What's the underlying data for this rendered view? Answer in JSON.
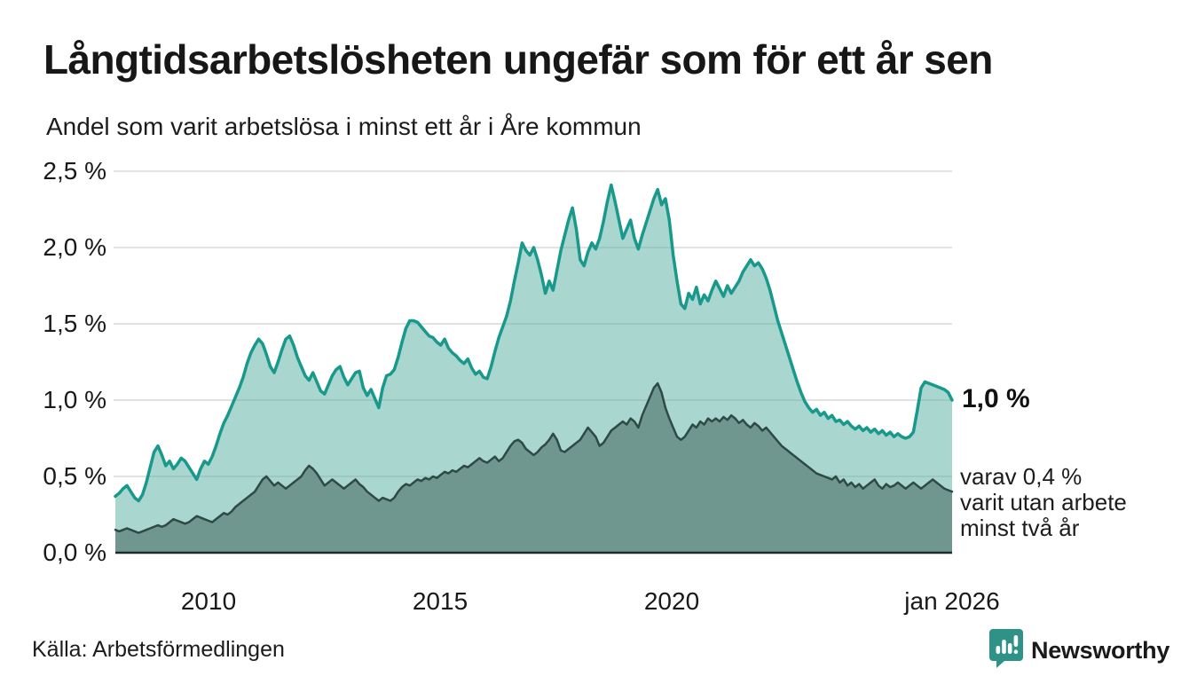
{
  "header": {
    "title": "Långtidsarbetslösheten ungefär som för ett år sen",
    "subtitle": "Andel som varit arbetslösa i minst ett år i Åre kommun"
  },
  "chart_data": {
    "type": "area",
    "title": "Långtidsarbetslösheten ungefär som för ett år sen",
    "subtitle": "Andel som varit arbetslösa i minst ett år i Åre kommun",
    "unit": "%",
    "x_start": "jan 2008",
    "x_end": "jan 2026",
    "points_per_year": 12,
    "ylim": [
      0,
      2.5
    ],
    "grid": true,
    "grid_color": "#e2e2e2",
    "axis_color": "#1d2c29",
    "y_ticks": [
      {
        "label": "2,5 %",
        "value": 2.5
      },
      {
        "label": "2,0 %",
        "value": 2.0
      },
      {
        "label": "1,5 %",
        "value": 1.5
      },
      {
        "label": "1,0 %",
        "value": 1.0
      },
      {
        "label": "0,5 %",
        "value": 0.5
      },
      {
        "label": "0,0 %",
        "value": 0.0
      }
    ],
    "x_ticks": [
      {
        "label": "2010",
        "year": 2010
      },
      {
        "label": "2015",
        "year": 2015
      },
      {
        "label": "2020",
        "year": 2020
      },
      {
        "label": "jan 2026",
        "year": 2026
      }
    ],
    "end_labels": {
      "total": "1,0 %",
      "detail": [
        "varav 0,4 %",
        "varit utan arbete",
        "minst två år"
      ]
    },
    "series": [
      {
        "name": "Andel arbetslösa minst ett år",
        "line_color": "#18998b",
        "fill_color": "#53ad9f",
        "fill_opacity": 0.5,
        "line_width": 3.5,
        "last_value": 1.0,
        "values": [
          0.37,
          0.39,
          0.42,
          0.44,
          0.4,
          0.36,
          0.34,
          0.38,
          0.46,
          0.56,
          0.66,
          0.7,
          0.64,
          0.57,
          0.6,
          0.55,
          0.58,
          0.62,
          0.6,
          0.56,
          0.52,
          0.48,
          0.55,
          0.6,
          0.58,
          0.63,
          0.7,
          0.78,
          0.85,
          0.9,
          0.96,
          1.02,
          1.08,
          1.15,
          1.24,
          1.31,
          1.36,
          1.4,
          1.37,
          1.3,
          1.22,
          1.18,
          1.25,
          1.33,
          1.4,
          1.42,
          1.36,
          1.28,
          1.22,
          1.16,
          1.13,
          1.18,
          1.12,
          1.06,
          1.04,
          1.1,
          1.16,
          1.2,
          1.22,
          1.15,
          1.1,
          1.14,
          1.18,
          1.19,
          1.08,
          1.03,
          1.07,
          1.01,
          0.95,
          1.08,
          1.16,
          1.17,
          1.2,
          1.28,
          1.38,
          1.47,
          1.52,
          1.52,
          1.51,
          1.48,
          1.45,
          1.42,
          1.41,
          1.38,
          1.36,
          1.4,
          1.34,
          1.31,
          1.29,
          1.26,
          1.24,
          1.27,
          1.21,
          1.17,
          1.19,
          1.15,
          1.14,
          1.22,
          1.32,
          1.41,
          1.48,
          1.55,
          1.65,
          1.78,
          1.9,
          2.03,
          1.98,
          1.95,
          2.0,
          1.92,
          1.82,
          1.7,
          1.78,
          1.72,
          1.85,
          1.98,
          2.08,
          2.18,
          2.26,
          2.12,
          1.92,
          1.88,
          1.97,
          2.03,
          1.99,
          2.06,
          2.17,
          2.3,
          2.41,
          2.3,
          2.18,
          2.06,
          2.12,
          2.18,
          2.06,
          1.99,
          2.08,
          2.16,
          2.24,
          2.32,
          2.38,
          2.28,
          2.32,
          2.18,
          1.95,
          1.78,
          1.63,
          1.6,
          1.7,
          1.66,
          1.74,
          1.63,
          1.69,
          1.65,
          1.72,
          1.78,
          1.73,
          1.68,
          1.75,
          1.7,
          1.74,
          1.78,
          1.84,
          1.88,
          1.92,
          1.88,
          1.9,
          1.86,
          1.8,
          1.72,
          1.62,
          1.52,
          1.44,
          1.36,
          1.28,
          1.2,
          1.12,
          1.05,
          0.99,
          0.95,
          0.92,
          0.94,
          0.9,
          0.92,
          0.88,
          0.9,
          0.86,
          0.87,
          0.84,
          0.86,
          0.83,
          0.81,
          0.83,
          0.8,
          0.82,
          0.79,
          0.81,
          0.78,
          0.8,
          0.77,
          0.79,
          0.76,
          0.78,
          0.76,
          0.75,
          0.76,
          0.79,
          0.93,
          1.08,
          1.12,
          1.11,
          1.1,
          1.09,
          1.08,
          1.07,
          1.05,
          1.0
        ]
      },
      {
        "name": "varav utan arbete minst två år",
        "line_color": "#2e4a45",
        "fill_color": "#70978f",
        "fill_opacity": 1,
        "line_width": 2.5,
        "last_value": 0.4,
        "values": [
          0.15,
          0.14,
          0.15,
          0.16,
          0.15,
          0.14,
          0.13,
          0.14,
          0.15,
          0.16,
          0.17,
          0.18,
          0.17,
          0.18,
          0.2,
          0.22,
          0.21,
          0.2,
          0.19,
          0.2,
          0.22,
          0.24,
          0.23,
          0.22,
          0.21,
          0.2,
          0.22,
          0.24,
          0.26,
          0.25,
          0.27,
          0.3,
          0.32,
          0.34,
          0.36,
          0.38,
          0.4,
          0.44,
          0.48,
          0.5,
          0.47,
          0.44,
          0.46,
          0.44,
          0.42,
          0.44,
          0.46,
          0.48,
          0.5,
          0.54,
          0.57,
          0.55,
          0.52,
          0.48,
          0.44,
          0.46,
          0.48,
          0.46,
          0.44,
          0.42,
          0.44,
          0.46,
          0.48,
          0.45,
          0.43,
          0.4,
          0.38,
          0.36,
          0.34,
          0.36,
          0.35,
          0.34,
          0.36,
          0.4,
          0.43,
          0.45,
          0.44,
          0.46,
          0.48,
          0.47,
          0.49,
          0.48,
          0.5,
          0.49,
          0.51,
          0.53,
          0.52,
          0.54,
          0.53,
          0.55,
          0.57,
          0.56,
          0.58,
          0.6,
          0.62,
          0.6,
          0.59,
          0.61,
          0.63,
          0.6,
          0.62,
          0.66,
          0.7,
          0.73,
          0.74,
          0.72,
          0.68,
          0.66,
          0.64,
          0.66,
          0.69,
          0.71,
          0.74,
          0.78,
          0.74,
          0.67,
          0.66,
          0.68,
          0.7,
          0.72,
          0.74,
          0.78,
          0.82,
          0.79,
          0.76,
          0.7,
          0.72,
          0.76,
          0.8,
          0.82,
          0.84,
          0.86,
          0.84,
          0.88,
          0.86,
          0.82,
          0.9,
          0.96,
          1.02,
          1.08,
          1.11,
          1.05,
          0.95,
          0.88,
          0.82,
          0.76,
          0.74,
          0.76,
          0.8,
          0.84,
          0.82,
          0.86,
          0.84,
          0.88,
          0.86,
          0.88,
          0.86,
          0.89,
          0.87,
          0.9,
          0.88,
          0.85,
          0.87,
          0.84,
          0.82,
          0.85,
          0.83,
          0.8,
          0.82,
          0.79,
          0.76,
          0.73,
          0.7,
          0.68,
          0.66,
          0.64,
          0.62,
          0.6,
          0.58,
          0.56,
          0.54,
          0.52,
          0.51,
          0.5,
          0.49,
          0.48,
          0.5,
          0.46,
          0.48,
          0.44,
          0.46,
          0.43,
          0.45,
          0.42,
          0.44,
          0.46,
          0.48,
          0.44,
          0.42,
          0.45,
          0.43,
          0.44,
          0.46,
          0.44,
          0.42,
          0.44,
          0.46,
          0.44,
          0.42,
          0.44,
          0.46,
          0.48,
          0.46,
          0.44,
          0.42,
          0.41,
          0.4
        ]
      }
    ]
  },
  "footer": {
    "source": "Källa: Arbetsförmedlingen",
    "brand": "Newsworthy",
    "brand_color": "#2f9488"
  }
}
